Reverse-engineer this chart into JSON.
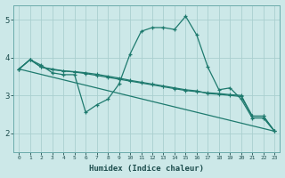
{
  "title": "",
  "xlabel": "Humidex (Indice chaleur)",
  "ylabel": "",
  "background_color": "#cce8e8",
  "grid_color": "#aacfcf",
  "line_color": "#1e7a6e",
  "xlim": [
    -0.5,
    23.5
  ],
  "ylim": [
    1.5,
    5.4
  ],
  "yticks": [
    2,
    3,
    4,
    5
  ],
  "xticks": [
    0,
    1,
    2,
    3,
    4,
    5,
    6,
    7,
    8,
    9,
    10,
    11,
    12,
    13,
    14,
    15,
    16,
    17,
    18,
    19,
    20,
    21,
    22,
    23
  ],
  "line1_x": [
    0,
    1,
    2,
    3,
    4,
    5,
    6,
    7,
    8,
    9,
    10,
    11,
    12,
    13,
    14,
    15,
    16,
    17,
    18,
    19,
    20,
    21,
    22,
    23
  ],
  "line1_y": [
    3.7,
    3.95,
    3.8,
    3.6,
    3.55,
    3.55,
    2.55,
    2.75,
    2.9,
    3.3,
    4.1,
    4.7,
    4.8,
    4.8,
    4.75,
    5.1,
    4.6,
    3.75,
    3.15,
    3.2,
    2.9,
    2.4,
    2.4,
    2.05
  ],
  "line2_x": [
    0,
    1,
    2,
    3,
    4,
    5,
    6,
    7,
    8,
    9,
    10,
    11,
    12,
    13,
    14,
    15,
    16,
    17,
    18,
    19,
    20,
    21,
    22,
    23
  ],
  "line2_y": [
    3.7,
    3.95,
    3.75,
    3.7,
    3.65,
    3.62,
    3.58,
    3.53,
    3.48,
    3.43,
    3.38,
    3.33,
    3.28,
    3.23,
    3.18,
    3.13,
    3.1,
    3.07,
    3.05,
    3.02,
    3.0,
    2.45,
    2.45,
    2.05
  ],
  "line3_x": [
    0,
    1,
    2,
    3,
    4,
    5,
    6,
    7,
    8,
    9,
    10,
    11,
    12,
    13,
    14,
    15,
    16,
    17,
    18,
    19,
    20,
    21,
    22,
    23
  ],
  "line3_y": [
    3.7,
    3.95,
    3.75,
    3.68,
    3.65,
    3.63,
    3.6,
    3.56,
    3.51,
    3.46,
    3.4,
    3.35,
    3.3,
    3.25,
    3.2,
    3.15,
    3.12,
    3.05,
    3.03,
    3.0,
    2.97,
    2.45,
    2.45,
    2.05
  ],
  "line4_x": [
    0,
    23
  ],
  "line4_y": [
    3.7,
    2.05
  ]
}
